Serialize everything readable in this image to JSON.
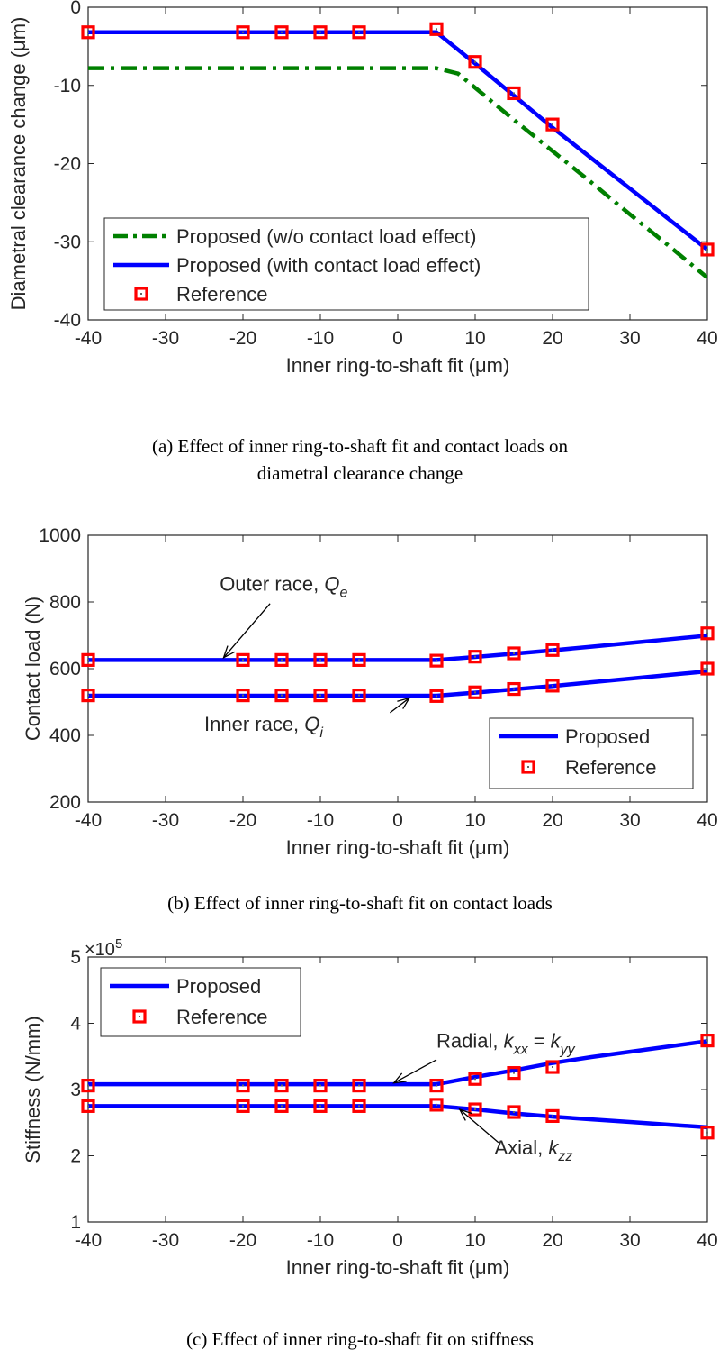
{
  "chart_data": [
    {
      "type": "line",
      "caption_lines": [
        "(a) Effect of inner ring-to-shaft fit and contact loads on",
        "diametral clearance change"
      ],
      "xlabel": "Inner ring-to-shaft fit (μm)",
      "ylabel": "Diametral clearance change (μm)",
      "xlim": [
        -40,
        40
      ],
      "ylim": [
        -40,
        0
      ],
      "xticks": [
        -40,
        -30,
        -20,
        -10,
        0,
        10,
        20,
        30,
        40
      ],
      "yticks": [
        -40,
        -30,
        -20,
        -10,
        0
      ],
      "grid": false,
      "legend_position": "bottom-right",
      "series": [
        {
          "name": "Proposed (w/o contact load effect)",
          "style": "dashdot",
          "color": "#008000",
          "x": [
            -40,
            -20,
            -15,
            -10,
            -5,
            0,
            5,
            7.8,
            10,
            15,
            20,
            25,
            30,
            35,
            40
          ],
          "y": [
            -7.8,
            -7.8,
            -7.8,
            -7.8,
            -7.8,
            -7.8,
            -7.8,
            -8.5,
            -10.3,
            -14.4,
            -18.4,
            -22.4,
            -26.5,
            -30.5,
            -34.6
          ]
        },
        {
          "name": "Proposed (with contact load effect)",
          "style": "solid",
          "color": "#0000ff",
          "x": [
            -40,
            -20,
            -15,
            -10,
            -5,
            0,
            5,
            10,
            15,
            20,
            25,
            30,
            35,
            40
          ],
          "y": [
            -3.2,
            -3.2,
            -3.2,
            -3.2,
            -3.2,
            -3.2,
            -3.2,
            -7.2,
            -11.3,
            -15.4,
            -19.3,
            -23.2,
            -27.1,
            -31.0
          ]
        },
        {
          "name": "Reference",
          "style": "marker",
          "color": "#ff0000",
          "x": [
            -40,
            -20,
            -15,
            -10,
            -5,
            5,
            10,
            15,
            20,
            40
          ],
          "y": [
            -3.2,
            -3.2,
            -3.2,
            -3.2,
            -3.2,
            -2.8,
            -7.0,
            -11.0,
            -15.0,
            -31.0
          ]
        }
      ],
      "annotations": []
    },
    {
      "type": "line",
      "caption_lines": [
        "(b) Effect of inner ring-to-shaft fit on contact loads"
      ],
      "xlabel": "Inner ring-to-shaft fit (μm)",
      "ylabel": "Contact load (N)",
      "xlim": [
        -40,
        40
      ],
      "ylim": [
        200,
        1000
      ],
      "xticks": [
        -40,
        -30,
        -20,
        -10,
        0,
        10,
        20,
        30,
        40
      ],
      "yticks": [
        200,
        400,
        600,
        800,
        1000
      ],
      "grid": false,
      "legend_position": "bottom-right",
      "series": [
        {
          "name": "Proposed",
          "style": "solid",
          "color": "#0000ff",
          "parts": [
            {
              "x": [
                -40,
                -20,
                -15,
                -10,
                -5,
                0,
                5,
                10,
                15,
                20,
                25,
                30,
                35,
                40
              ],
              "y": [
                626,
                626,
                626,
                626,
                626,
                626,
                626,
                635,
                645,
                655,
                666,
                677,
                688,
                699
              ]
            },
            {
              "x": [
                -40,
                -20,
                -15,
                -10,
                -5,
                0,
                5,
                10,
                15,
                20,
                25,
                30,
                35,
                40
              ],
              "y": [
                519,
                519,
                519,
                519,
                519,
                519,
                519,
                528,
                538,
                548,
                559,
                570,
                581,
                592
              ]
            }
          ]
        },
        {
          "name": "Reference",
          "style": "marker",
          "color": "#ff0000",
          "parts": [
            {
              "x": [
                -40,
                -20,
                -15,
                -10,
                -5,
                5,
                10,
                15,
                20,
                40
              ],
              "y": [
                626,
                626,
                626,
                626,
                626,
                624,
                636,
                646,
                656,
                706
              ]
            },
            {
              "x": [
                -40,
                -20,
                -15,
                -10,
                -5,
                5,
                10,
                15,
                20,
                40
              ],
              "y": [
                520,
                520,
                520,
                520,
                520,
                518,
                529,
                539,
                549,
                600
              ]
            }
          ]
        }
      ],
      "annotations": [
        {
          "text": "Outer race, ",
          "sym": "Q",
          "sub": "e",
          "label_x": -23,
          "label_y": 834,
          "arrow_from": [
            -16.5,
            795
          ],
          "arrow_to": [
            -22.5,
            633
          ]
        },
        {
          "text": "Inner race, ",
          "sym": "Q",
          "sub": "i",
          "label_x": -25,
          "label_y": 413,
          "arrow_from": [
            -1,
            468
          ],
          "arrow_to": [
            1.5,
            512
          ]
        }
      ]
    },
    {
      "type": "line",
      "caption_lines": [
        "(c) Effect of inner ring-to-shaft fit on stiffness"
      ],
      "xlabel": "Inner ring-to-shaft fit (μm)",
      "ylabel": "Stiffness (N/mm)",
      "y_multiplier": "×10",
      "y_multiplier_exp": "5",
      "xlim": [
        -40,
        40
      ],
      "ylim": [
        1,
        5
      ],
      "xticks": [
        -40,
        -30,
        -20,
        -10,
        0,
        10,
        20,
        30,
        40
      ],
      "yticks": [
        1,
        2,
        3,
        4,
        5
      ],
      "grid": false,
      "legend_position": "top-left",
      "series": [
        {
          "name": "Proposed",
          "style": "solid",
          "color": "#0000ff",
          "parts": [
            {
              "x": [
                -40,
                -20,
                -15,
                -10,
                -5,
                0,
                5,
                10,
                15,
                20,
                25,
                30,
                35,
                40
              ],
              "y": [
                3.08,
                3.08,
                3.08,
                3.08,
                3.08,
                3.08,
                3.08,
                3.19,
                3.29,
                3.4,
                3.49,
                3.57,
                3.65,
                3.73
              ]
            },
            {
              "x": [
                -40,
                -20,
                -15,
                -10,
                -5,
                0,
                5,
                10,
                15,
                20,
                25,
                30,
                35,
                40
              ],
              "y": [
                2.75,
                2.75,
                2.75,
                2.75,
                2.75,
                2.75,
                2.75,
                2.7,
                2.64,
                2.59,
                2.55,
                2.51,
                2.47,
                2.43
              ]
            }
          ]
        },
        {
          "name": "Reference",
          "style": "marker",
          "color": "#ff0000",
          "parts": [
            {
              "x": [
                -40,
                -20,
                -15,
                -10,
                -5,
                5,
                10,
                15,
                20,
                40
              ],
              "y": [
                3.06,
                3.06,
                3.06,
                3.06,
                3.06,
                3.06,
                3.16,
                3.25,
                3.34,
                3.74
              ]
            },
            {
              "x": [
                -40,
                -20,
                -15,
                -10,
                -5,
                5,
                10,
                15,
                20,
                40
              ],
              "y": [
                2.75,
                2.75,
                2.75,
                2.75,
                2.75,
                2.77,
                2.7,
                2.66,
                2.6,
                2.35
              ]
            }
          ]
        }
      ],
      "annotations": [
        {
          "text": "Radial, ",
          "sym": "k",
          "sub": "xx",
          "mid": " = ",
          "sym2": "k",
          "sub2": "yy",
          "label_x": 5,
          "label_y": 3.63,
          "arrow_from": [
            5,
            3.45
          ],
          "arrow_to": [
            -0.5,
            3.1
          ]
        },
        {
          "text": "Axial, ",
          "sym": "k",
          "sub": "zz",
          "label_x": 12.5,
          "label_y": 2.02,
          "arrow_from": [
            13,
            2.2
          ],
          "arrow_to": [
            8,
            2.7
          ]
        }
      ]
    }
  ]
}
